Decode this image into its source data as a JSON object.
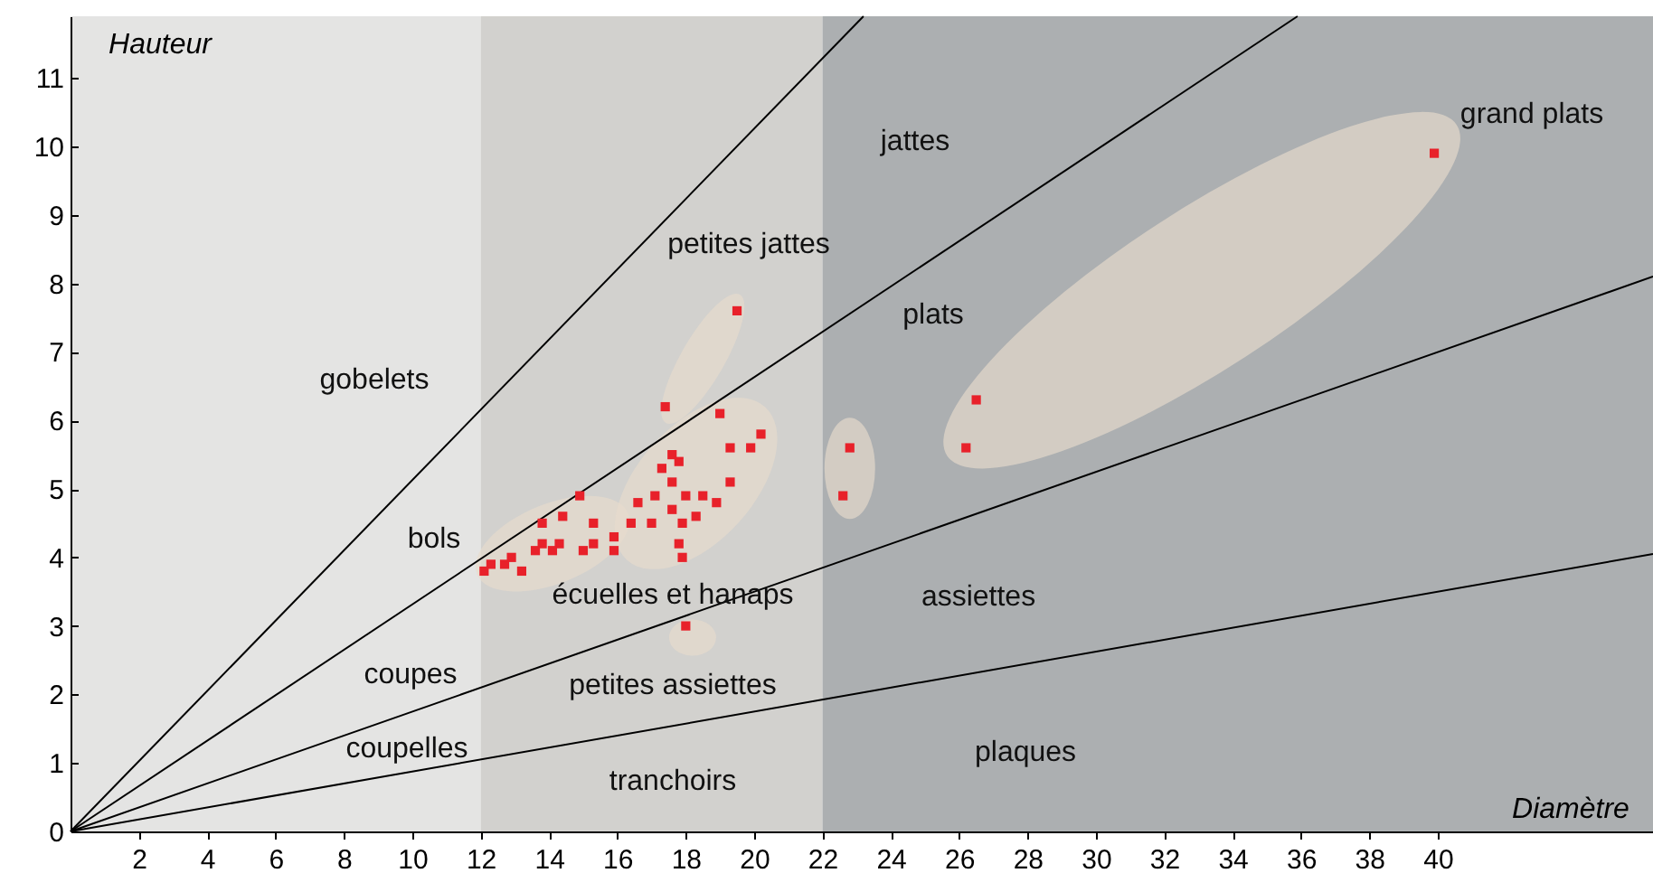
{
  "chart_data": {
    "type": "scatter",
    "xlabel": "Diamètre",
    "ylabel": "Hauteur",
    "xlim": [
      0,
      46.3
    ],
    "ylim": [
      0,
      11.9
    ],
    "xticks": [
      2,
      4,
      6,
      8,
      10,
      12,
      14,
      16,
      18,
      20,
      22,
      24,
      26,
      28,
      30,
      32,
      34,
      36,
      38,
      40
    ],
    "yticks": [
      0,
      1,
      2,
      3,
      4,
      5,
      6,
      7,
      8,
      9,
      10,
      11
    ],
    "grid": false,
    "bands": [
      {
        "axis": "x",
        "from": 0,
        "to": 12,
        "color": "#e4e4e3"
      },
      {
        "axis": "x",
        "from": 12,
        "to": 22,
        "color": "#d2d1ce"
      },
      {
        "axis": "x",
        "from": 22,
        "to": 46.3,
        "color": "#acafb1"
      }
    ],
    "series": [
      {
        "type": "line",
        "marker": "none",
        "color": "#000000",
        "x": [
          0,
          23.2
        ],
        "values": [
          0,
          11.9
        ]
      },
      {
        "type": "line",
        "marker": "none",
        "color": "#000000",
        "x": [
          0,
          35.9
        ],
        "values": [
          0,
          11.9
        ]
      },
      {
        "type": "line",
        "marker": "none",
        "color": "#000000",
        "x": [
          0,
          46.3
        ],
        "values": [
          0,
          8.1
        ]
      },
      {
        "type": "line",
        "marker": "none",
        "color": "#000000",
        "x": [
          0,
          46.3
        ],
        "values": [
          0,
          4.05
        ]
      },
      {
        "marker": "square",
        "color": "#e8212a",
        "x": [
          19.5,
          17.4,
          19.0,
          20.2,
          19.3,
          19.9,
          17.6,
          17.8,
          17.3,
          17.6,
          19.3,
          16.6,
          17.1,
          18.0,
          18.5,
          18.9,
          17.6,
          18.3,
          16.4,
          17.0,
          17.9,
          17.8,
          17.9,
          18.0,
          14.9,
          14.4,
          13.8,
          15.3,
          13.8,
          14.3,
          15.9,
          15.3,
          15.9,
          13.6,
          14.1,
          15.0,
          12.9,
          12.3,
          12.7,
          13.2,
          12.1,
          39.9,
          26.5,
          26.2,
          22.8,
          22.6
        ],
        "values": [
          7.6,
          6.2,
          6.1,
          5.8,
          5.6,
          5.6,
          5.5,
          5.4,
          5.3,
          5.1,
          5.1,
          4.8,
          4.9,
          4.9,
          4.9,
          4.8,
          4.7,
          4.6,
          4.5,
          4.5,
          4.5,
          4.2,
          4.0,
          3.0,
          4.9,
          4.6,
          4.5,
          4.5,
          4.2,
          4.2,
          4.3,
          4.2,
          4.1,
          4.1,
          4.1,
          4.1,
          4.0,
          3.9,
          3.9,
          3.8,
          3.8,
          9.9,
          6.3,
          5.6,
          5.6,
          4.9
        ]
      }
    ],
    "annotations": [
      "jattes",
      "grand plats",
      "petites jattes",
      "plats",
      "gobelets",
      "bols",
      "écuelles et hanaps",
      "assiettes",
      "coupes",
      "petites assiettes",
      "coupelles",
      "plaques",
      "tranchoirs"
    ]
  }
}
